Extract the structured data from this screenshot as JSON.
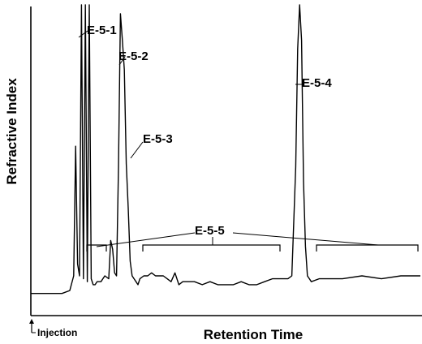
{
  "chart_data": {
    "type": "line",
    "title": "",
    "xlabel": "Retention Time",
    "ylabel": "Refractive Index",
    "injection_marker": "Injection",
    "peak_labels": [
      {
        "id": "E-5-1"
      },
      {
        "id": "E-5-2"
      },
      {
        "id": "E-5-3"
      },
      {
        "id": "E-5-4"
      },
      {
        "id": "E-5-5"
      }
    ],
    "series": [
      {
        "x": [
          0,
          8,
          10,
          11,
          11.5,
          12,
          12.5,
          13,
          13.5,
          14,
          14.5,
          15,
          15.5,
          16,
          16.5,
          17,
          18,
          19,
          20,
          20.5,
          21,
          21.5,
          22,
          22.5,
          23,
          23.5,
          24,
          24.5,
          25,
          25.5,
          26,
          26.5,
          27,
          27.5,
          28,
          29,
          30,
          31,
          32,
          33,
          34,
          35,
          36,
          37,
          38,
          39,
          40,
          42,
          44,
          46,
          48,
          50,
          52,
          54,
          56,
          58,
          60,
          62,
          64,
          66,
          67,
          68,
          68.5,
          69,
          69.5,
          70,
          70.5,
          71,
          72,
          74,
          76,
          78,
          80,
          85,
          90,
          95,
          100
        ],
        "y": [
          2,
          2,
          3,
          8,
          52,
          12,
          8,
          100,
          7,
          100,
          6,
          100,
          7,
          5,
          5,
          6,
          6,
          8,
          7,
          20,
          17,
          9,
          8,
          45,
          97,
          88,
          78,
          46,
          31,
          13,
          8,
          7,
          6,
          5,
          7,
          8,
          8,
          9,
          8,
          8,
          8,
          7,
          6,
          9,
          5,
          6,
          6,
          6,
          5,
          6,
          5,
          5,
          5,
          6,
          5,
          5,
          6,
          7,
          7,
          7,
          8,
          45,
          85,
          100,
          88,
          40,
          18,
          8,
          6,
          7,
          7,
          7,
          7,
          8,
          7,
          8,
          8
        ]
      }
    ],
    "xlim": [
      0,
      100
    ],
    "ylim": [
      0,
      100
    ],
    "grid": false,
    "legend": "none"
  }
}
